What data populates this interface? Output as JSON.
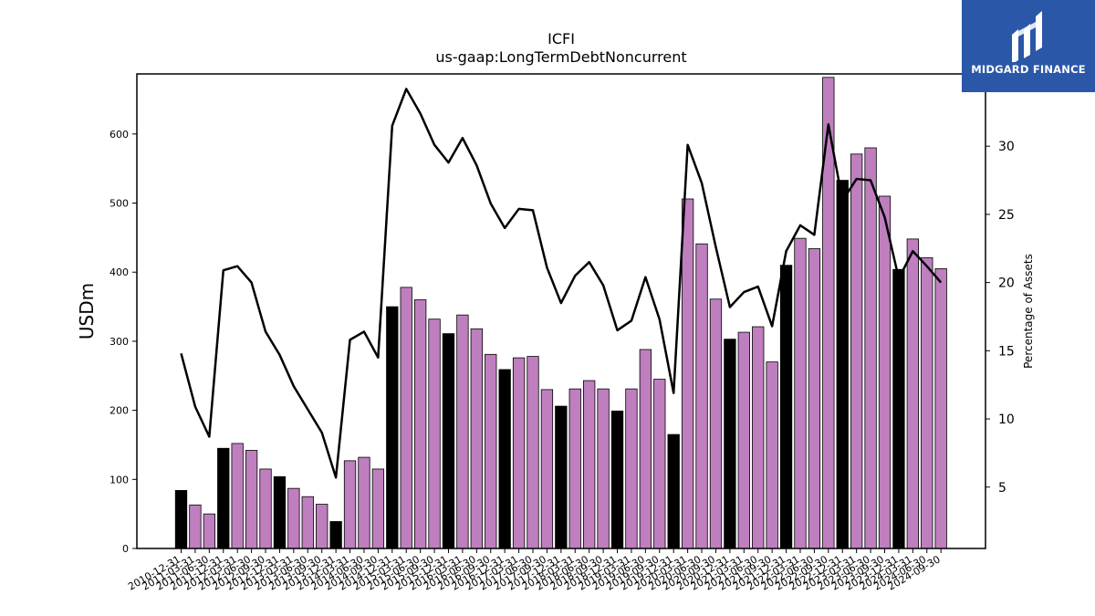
{
  "chart_data": {
    "type": "bar",
    "title": "ICFI",
    "subtitle": "us-gaap:LongTermDebtNoncurrent",
    "ylabel": "USDm",
    "ylabel_right": "Percentage of Assets",
    "ylim": [
      0,
      687
    ],
    "ylim_right": [
      0.5,
      35.3
    ],
    "yticks": [
      0,
      100,
      200,
      300,
      400,
      500,
      600
    ],
    "yticks_right": [
      5,
      10,
      15,
      20,
      25,
      30
    ],
    "colors": {
      "annual": "#000000",
      "quarter": "#bf7fbf",
      "line": "#000000"
    },
    "categories": [
      "2010-12-31",
      "2011-03-31",
      "2011-06-30",
      "2011-12-31",
      "2012-03-31",
      "2012-06-30",
      "2012-09-30",
      "2012-12-31",
      "2013-03-31",
      "2013-06-30",
      "2013-09-30",
      "2013-12-31",
      "2014-03-31",
      "2014-06-30",
      "2014-09-30",
      "2014-12-31",
      "2015-03-31",
      "2015-06-30",
      "2015-09-30",
      "2015-12-31",
      "2016-03-31",
      "2016-06-30",
      "2016-09-30",
      "2016-12-31",
      "2017-03-31",
      "2017-06-30",
      "2017-09-30",
      "2017-12-31",
      "2018-03-31",
      "2018-06-30",
      "2018-09-30",
      "2018-12-31",
      "2019-03-31",
      "2019-06-30",
      "2019-09-30",
      "2019-12-31",
      "2020-03-31",
      "2020-06-30",
      "2020-09-30",
      "2020-12-31",
      "2021-03-31",
      "2021-06-30",
      "2021-09-30",
      "2021-12-31",
      "2022-03-31",
      "2022-06-30",
      "2022-09-30",
      "2022-12-31",
      "2023-03-31",
      "2023-06-30",
      "2023-09-30",
      "2023-12-31",
      "2024-03-31",
      "2024-06-30",
      "2024-09-30"
    ],
    "annual_flags": [
      true,
      false,
      false,
      true,
      false,
      false,
      false,
      true,
      false,
      false,
      false,
      true,
      false,
      false,
      false,
      true,
      false,
      false,
      false,
      true,
      false,
      false,
      false,
      true,
      false,
      false,
      false,
      true,
      false,
      false,
      false,
      true,
      false,
      false,
      false,
      true,
      false,
      false,
      false,
      true,
      false,
      false,
      false,
      true,
      false,
      false,
      false,
      true,
      false,
      false,
      false,
      true,
      false,
      false,
      false
    ],
    "series": [
      {
        "name": "",
        "axis": "left",
        "values": [
          84,
          63,
          50,
          145,
          152,
          142,
          115,
          104,
          87,
          75,
          64,
          39,
          127,
          132,
          115,
          350,
          378,
          360,
          332,
          311,
          338,
          318,
          281,
          259,
          276,
          278,
          230,
          206,
          231,
          243,
          231,
          199,
          231,
          288,
          245,
          165,
          506,
          441,
          361,
          303,
          313,
          321,
          270,
          410,
          449,
          434,
          682,
          533,
          571,
          580,
          510,
          404,
          448,
          421,
          405
        ]
      },
      {
        "name": "",
        "axis": "right",
        "type": "line",
        "values": [
          14.8,
          10.9,
          8.7,
          20.9,
          21.2,
          20.0,
          16.4,
          14.7,
          12.4,
          10.7,
          9.0,
          5.7,
          15.8,
          16.4,
          14.5,
          31.5,
          34.2,
          32.4,
          30.1,
          28.8,
          30.6,
          28.6,
          25.8,
          24.0,
          25.4,
          25.3,
          21.1,
          18.5,
          20.5,
          21.5,
          19.8,
          16.5,
          17.2,
          20.4,
          17.3,
          11.9,
          30.1,
          27.3,
          22.6,
          18.2,
          19.3,
          19.7,
          16.8,
          22.3,
          24.2,
          23.5,
          31.6,
          26.0,
          27.6,
          27.5,
          24.8,
          20.3,
          22.3,
          21.2,
          20.0
        ]
      }
    ]
  },
  "logo": {
    "brand": "MIDGARD FINANCE",
    "icon": "midgard-logo-icon"
  }
}
